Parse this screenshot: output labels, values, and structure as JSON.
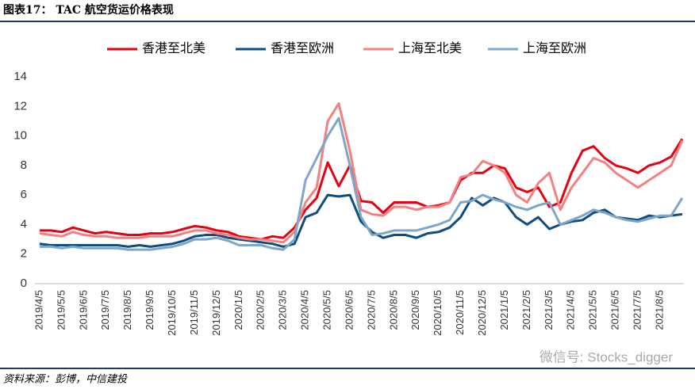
{
  "header": {
    "title": "图表17： TAC 航空货运价格表现"
  },
  "footer": {
    "source": "资料来源：彭博，中信建投",
    "watermark": "微信号: Stocks_digger"
  },
  "chart_data": {
    "type": "line",
    "categories": [
      "2019/4/5",
      null,
      "2019/5/5",
      null,
      "2019/6/5",
      null,
      "2019/7/5",
      null,
      "2019/8/5",
      null,
      "2019/9/5",
      null,
      "2019/10/5",
      null,
      "2019/11/5",
      null,
      "2019/12/5",
      null,
      "2020/1/5",
      null,
      "2020/2/5",
      null,
      "2020/3/5",
      null,
      "2020/4/5",
      null,
      "2020/5/5",
      null,
      "2020/6/5",
      null,
      "2020/7/5",
      null,
      "2020/8/5",
      null,
      "2020/9/5",
      null,
      "2020/10/5",
      null,
      "2020/11/5",
      null,
      "2020/12/5",
      null,
      "2021/1/5",
      null,
      "2021/2/5",
      null,
      "2021/3/5",
      null,
      "2021/4/5",
      null,
      "2021/5/5",
      null,
      "2021/6/5",
      null,
      "2021/7/5",
      null,
      "2021/8/5",
      null,
      null
    ],
    "series": [
      {
        "name": "香港至北美",
        "color": "#e60012",
        "values": [
          3.6,
          3.6,
          3.5,
          3.8,
          3.6,
          3.4,
          3.5,
          3.4,
          3.3,
          3.3,
          3.4,
          3.4,
          3.5,
          3.7,
          3.9,
          3.8,
          3.6,
          3.5,
          3.2,
          3.1,
          3.0,
          3.2,
          3.1,
          3.8,
          5.0,
          5.8,
          8.2,
          6.6,
          8.0,
          5.6,
          5.5,
          4.8,
          5.5,
          5.5,
          5.5,
          5.2,
          5.3,
          5.5,
          7.0,
          7.5,
          7.5,
          8.0,
          7.8,
          6.5,
          6.2,
          6.5,
          5.2,
          5.5,
          7.5,
          9.0,
          9.3,
          8.5,
          8.0,
          7.8,
          7.5,
          8.0,
          8.2,
          8.6,
          9.8
        ]
      },
      {
        "name": "香港至欧洲",
        "color": "#0f4c81",
        "values": [
          2.7,
          2.6,
          2.6,
          2.6,
          2.6,
          2.6,
          2.6,
          2.6,
          2.5,
          2.6,
          2.5,
          2.6,
          2.7,
          2.9,
          3.2,
          3.3,
          3.3,
          3.1,
          3.0,
          2.9,
          2.8,
          2.7,
          2.5,
          2.7,
          4.5,
          4.8,
          6.0,
          5.9,
          6.0,
          4.2,
          3.5,
          3.1,
          3.3,
          3.3,
          3.1,
          3.4,
          3.5,
          3.8,
          4.5,
          5.8,
          5.3,
          5.8,
          5.5,
          4.5,
          4.0,
          4.5,
          3.7,
          4.0,
          4.2,
          4.3,
          4.8,
          5.0,
          4.5,
          4.4,
          4.3,
          4.6,
          4.5,
          4.6,
          4.7
        ]
      },
      {
        "name": "上海至北美",
        "color": "#f58080",
        "values": [
          3.4,
          3.3,
          3.2,
          3.5,
          3.3,
          3.2,
          3.2,
          3.1,
          3.1,
          3.1,
          3.2,
          3.2,
          3.2,
          3.4,
          3.6,
          3.6,
          3.4,
          3.3,
          3.1,
          3.0,
          3.0,
          2.9,
          2.8,
          3.5,
          5.5,
          6.5,
          11.0,
          12.2,
          9.0,
          5.0,
          4.7,
          4.6,
          5.2,
          5.2,
          5.0,
          5.2,
          5.2,
          5.5,
          7.2,
          7.4,
          8.3,
          8.0,
          7.5,
          6.0,
          5.5,
          6.8,
          7.5,
          5.0,
          6.5,
          7.5,
          8.5,
          8.2,
          7.5,
          7.0,
          6.5,
          7.0,
          7.5,
          8.0,
          9.7
        ]
      },
      {
        "name": "上海至欧洲",
        "color": "#7ea6c9",
        "values": [
          2.5,
          2.5,
          2.4,
          2.5,
          2.4,
          2.4,
          2.4,
          2.4,
          2.3,
          2.3,
          2.3,
          2.4,
          2.5,
          2.7,
          3.0,
          3.0,
          3.1,
          2.9,
          2.6,
          2.6,
          2.6,
          2.4,
          2.3,
          3.0,
          7.0,
          8.5,
          10.0,
          11.2,
          8.0,
          4.5,
          3.3,
          3.4,
          3.6,
          3.6,
          3.6,
          3.8,
          4.0,
          4.3,
          5.5,
          5.6,
          6.0,
          5.7,
          5.5,
          5.2,
          5.0,
          5.3,
          5.5,
          4.0,
          4.3,
          4.6,
          5.0,
          4.8,
          4.5,
          4.3,
          4.2,
          4.4,
          4.6,
          4.6,
          5.8
        ]
      }
    ],
    "ylim": [
      0,
      14
    ],
    "yticks": [
      0,
      2,
      4,
      6,
      8,
      10,
      12,
      14
    ],
    "grid": false
  }
}
